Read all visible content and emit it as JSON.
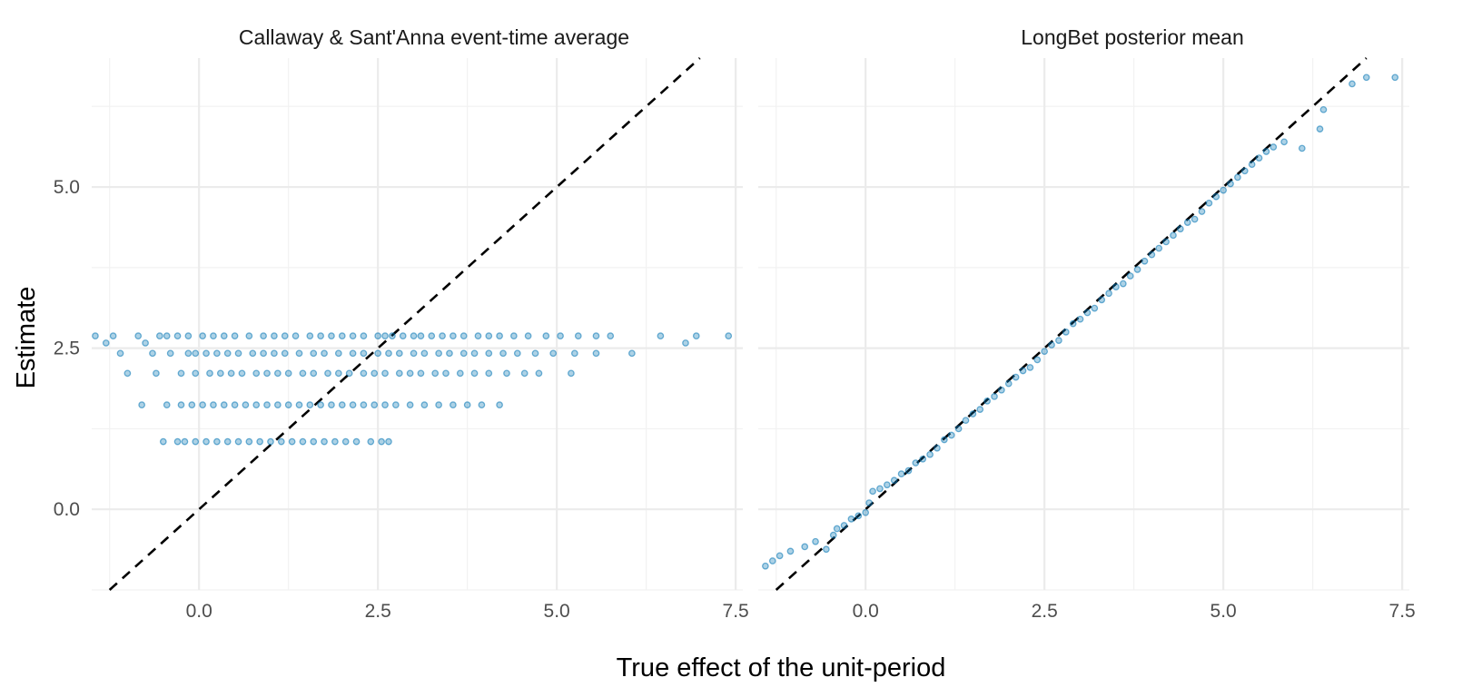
{
  "chart_data": {
    "type": "scatter",
    "x_axis_title": "True effect of the unit-period",
    "y_axis_title": "Estimate",
    "xlim": [
      -1.5,
      7.6
    ],
    "ylim": [
      -1.25,
      7.0
    ],
    "x_ticks": [
      0,
      2.5,
      5,
      7.5
    ],
    "x_tick_labels": [
      "0.0",
      "2.5",
      "5.0",
      "7.5"
    ],
    "y_ticks": [
      0,
      2.5,
      5
    ],
    "y_tick_labels": [
      "0.0",
      "2.5",
      "5.0"
    ],
    "grid": true,
    "reference_line": {
      "style": "dashed",
      "color": "#000000",
      "slope": 1,
      "intercept": 0
    },
    "point_color": "#0072B2",
    "panels": [
      {
        "title": "Callaway & Sant'Anna event-time average",
        "estimate_levels": [
          {
            "y": 2.69,
            "x": [
              -1.45,
              -1.2,
              -0.85,
              -0.55,
              -0.45,
              -0.3,
              -0.15,
              0.05,
              0.2,
              0.35,
              0.5,
              0.7,
              0.9,
              1.05,
              1.2,
              1.35,
              1.55,
              1.7,
              1.85,
              2.0,
              2.15,
              2.3,
              2.5,
              2.6,
              2.7,
              2.85,
              3.0,
              3.1,
              3.25,
              3.4,
              3.55,
              3.7,
              3.9,
              4.05,
              4.2,
              4.4,
              4.6,
              4.85,
              5.05,
              5.3,
              5.55,
              5.75,
              6.45,
              6.95,
              7.4
            ]
          },
          {
            "y": 2.58,
            "x": [
              -1.3,
              -0.75,
              6.8
            ]
          },
          {
            "y": 2.42,
            "x": [
              -1.1,
              -0.65,
              -0.4,
              -0.15,
              -0.05,
              0.1,
              0.25,
              0.4,
              0.55,
              0.75,
              0.9,
              1.05,
              1.2,
              1.4,
              1.6,
              1.75,
              1.95,
              2.15,
              2.3,
              2.5,
              2.65,
              2.8,
              3.0,
              3.15,
              3.35,
              3.5,
              3.7,
              3.85,
              4.05,
              4.25,
              4.45,
              4.7,
              4.95,
              5.25,
              5.55,
              6.05
            ]
          },
          {
            "y": 2.11,
            "x": [
              -1.0,
              -0.6,
              -0.25,
              -0.05,
              0.15,
              0.3,
              0.45,
              0.6,
              0.8,
              0.95,
              1.1,
              1.25,
              1.45,
              1.6,
              1.8,
              1.95,
              2.1,
              2.3,
              2.45,
              2.6,
              2.8,
              2.95,
              3.1,
              3.3,
              3.45,
              3.65,
              3.85,
              4.05,
              4.3,
              4.55,
              4.75,
              5.2
            ]
          },
          {
            "y": 1.62,
            "x": [
              -0.8,
              -0.45,
              -0.25,
              -0.1,
              0.05,
              0.2,
              0.35,
              0.5,
              0.65,
              0.8,
              0.95,
              1.1,
              1.25,
              1.4,
              1.55,
              1.7,
              1.85,
              2.0,
              2.15,
              2.3,
              2.45,
              2.6,
              2.75,
              2.95,
              3.15,
              3.35,
              3.55,
              3.75,
              3.95,
              4.2
            ]
          },
          {
            "y": 1.05,
            "x": [
              -0.5,
              -0.3,
              -0.2,
              -0.05,
              0.1,
              0.25,
              0.4,
              0.55,
              0.7,
              0.85,
              1.0,
              1.15,
              1.3,
              1.45,
              1.6,
              1.75,
              1.9,
              2.05,
              2.2,
              2.4,
              2.55,
              2.65
            ]
          }
        ]
      },
      {
        "title": "LongBet posterior mean",
        "x": [
          -1.4,
          -1.3,
          -1.2,
          -1.05,
          -0.85,
          -0.7,
          -0.55,
          -0.45,
          -0.4,
          -0.3,
          -0.2,
          -0.1,
          0.0,
          0.05,
          0.1,
          0.2,
          0.3,
          0.4,
          0.5,
          0.6,
          0.7,
          0.8,
          0.9,
          1.0,
          1.1,
          1.2,
          1.3,
          1.4,
          1.5,
          1.6,
          1.7,
          1.8,
          1.9,
          2.0,
          2.1,
          2.2,
          2.3,
          2.4,
          2.5,
          2.6,
          2.7,
          2.8,
          2.9,
          3.0,
          3.1,
          3.2,
          3.3,
          3.4,
          3.5,
          3.6,
          3.7,
          3.8,
          3.9,
          4.0,
          4.1,
          4.2,
          4.3,
          4.4,
          4.5,
          4.6,
          4.7,
          4.8,
          4.9,
          5.0,
          5.1,
          5.2,
          5.3,
          5.4,
          5.5,
          5.6,
          5.7,
          5.85,
          6.1,
          6.35,
          6.4,
          6.8,
          7.0,
          7.4
        ],
        "y": [
          -0.88,
          -0.8,
          -0.72,
          -0.65,
          -0.58,
          -0.5,
          -0.62,
          -0.4,
          -0.3,
          -0.25,
          -0.15,
          -0.1,
          -0.05,
          0.1,
          0.28,
          0.32,
          0.38,
          0.45,
          0.55,
          0.6,
          0.72,
          0.78,
          0.85,
          0.95,
          1.08,
          1.15,
          1.25,
          1.38,
          1.48,
          1.55,
          1.68,
          1.75,
          1.85,
          1.95,
          2.05,
          2.15,
          2.2,
          2.32,
          2.45,
          2.55,
          2.62,
          2.75,
          2.88,
          2.95,
          3.05,
          3.12,
          3.25,
          3.35,
          3.45,
          3.5,
          3.62,
          3.72,
          3.85,
          3.95,
          4.05,
          4.15,
          4.25,
          4.35,
          4.45,
          4.5,
          4.62,
          4.75,
          4.85,
          4.95,
          5.05,
          5.15,
          5.25,
          5.35,
          5.45,
          5.55,
          5.62,
          5.7,
          5.6,
          5.9,
          6.2,
          6.6,
          6.7,
          6.7
        ]
      }
    ]
  }
}
